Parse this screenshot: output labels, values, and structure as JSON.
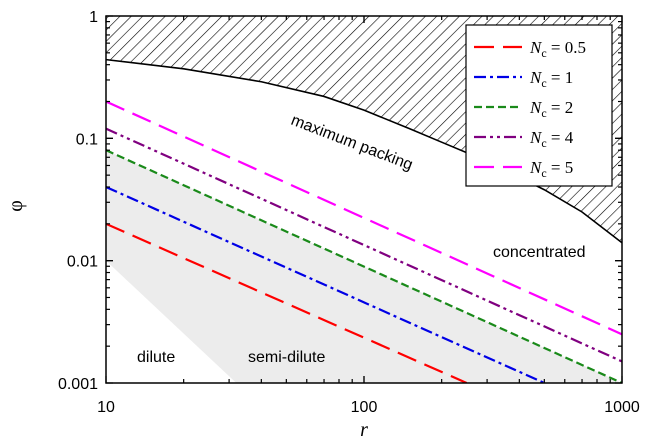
{
  "chart_data": {
    "type": "line",
    "xscale": "log",
    "yscale": "log",
    "xlim": [
      10,
      1000
    ],
    "ylim": [
      0.001,
      1
    ],
    "xlabel": "r",
    "ylabel": "φ",
    "x_ticks": [
      {
        "value": 10,
        "label": "10"
      },
      {
        "value": 100,
        "label": "100"
      },
      {
        "value": 1000,
        "label": "1000"
      }
    ],
    "y_ticks": [
      {
        "value": 0.001,
        "label": "0.001"
      },
      {
        "value": 0.01,
        "label": "0.01"
      },
      {
        "value": 0.1,
        "label": "0.1"
      },
      {
        "value": 1,
        "label": "1"
      }
    ],
    "legend_position": "top-right",
    "series": [
      {
        "name": "N_c = 0.5",
        "legend_var": "N",
        "legend_sub": "c",
        "legend_rest": " = 0.5",
        "color": "#ff0000",
        "dash": "long-dash",
        "x": [
          10,
          250
        ],
        "y": [
          0.02,
          0.001
        ]
      },
      {
        "name": "N_c = 1",
        "legend_var": "N",
        "legend_sub": "c",
        "legend_rest": " = 1",
        "color": "#0000e6",
        "dash": "dash-dot",
        "x": [
          10,
          500
        ],
        "y": [
          0.04,
          0.001
        ]
      },
      {
        "name": "N_c = 2",
        "legend_var": "N",
        "legend_sub": "c",
        "legend_rest": " = 2",
        "color": "#1a8a1a",
        "dash": "short-dash",
        "x": [
          10,
          1000
        ],
        "y": [
          0.08,
          0.001
        ]
      },
      {
        "name": "N_c = 4",
        "legend_var": "N",
        "legend_sub": "c",
        "legend_rest": " = 4",
        "color": "#800080",
        "dash": "dash-dot-dot",
        "x": [
          10,
          1000
        ],
        "y": [
          0.12,
          0.0015
        ]
      },
      {
        "name": "N_c = 5",
        "legend_var": "N",
        "legend_sub": "c",
        "legend_rest": " = 5",
        "color": "#ff00ff",
        "dash": "long-dash",
        "x": [
          10,
          1000
        ],
        "y": [
          0.2,
          0.0025
        ]
      }
    ],
    "max_packing_curve": {
      "x": [
        10,
        20,
        40,
        70,
        100,
        150,
        200,
        300,
        500,
        700,
        1000
      ],
      "y": [
        0.44,
        0.37,
        0.29,
        0.22,
        0.17,
        0.12,
        0.093,
        0.065,
        0.038,
        0.025,
        0.014
      ]
    },
    "semi_dilute_band": {
      "upper": {
        "x": [
          10,
          1000
        ],
        "y": [
          0.08,
          0.001
        ]
      },
      "lower": {
        "x": [
          10,
          32
        ],
        "y": [
          0.01,
          0.001
        ]
      }
    },
    "annotations": {
      "max_packing": "maximum packing",
      "concentrated": "concentrated",
      "dilute": "dilute",
      "semi_dilute": "semi-dilute"
    },
    "colors": {
      "band_fill": "#ececec",
      "axis": "#000000",
      "hatch": "#000000"
    }
  }
}
